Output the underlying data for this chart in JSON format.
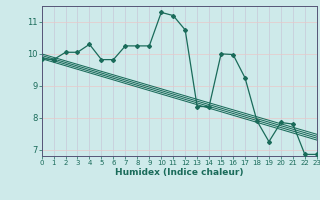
{
  "xlabel": "Humidex (Indice chaleur)",
  "xlim": [
    0,
    23
  ],
  "ylim": [
    6.8,
    11.5
  ],
  "xtick_values": [
    0,
    1,
    2,
    3,
    4,
    5,
    6,
    7,
    8,
    9,
    10,
    11,
    12,
    13,
    14,
    15,
    16,
    17,
    18,
    19,
    20,
    21,
    22,
    23
  ],
  "xtick_labels": [
    "0",
    "1",
    "2",
    "3",
    "4",
    "5",
    "6",
    "7",
    "8",
    "9",
    "10",
    "11",
    "12",
    "13",
    "14",
    "15",
    "16",
    "17",
    "18",
    "19",
    "20",
    "21",
    "22",
    "23"
  ],
  "ytick_values": [
    7,
    8,
    9,
    10,
    11
  ],
  "ytick_labels": [
    "7",
    "8",
    "9",
    "10",
    "11"
  ],
  "background_color": "#ceeaea",
  "grid_color_v": "#c8c8d8",
  "grid_color_h": "#e8c8c8",
  "line_color": "#1a6b5a",
  "data_x": [
    0,
    1,
    2,
    3,
    4,
    5,
    6,
    7,
    8,
    9,
    10,
    11,
    12,
    13,
    14,
    15,
    16,
    17,
    18,
    19,
    20,
    21,
    22,
    23
  ],
  "data_y": [
    9.85,
    9.82,
    10.05,
    10.05,
    10.3,
    9.82,
    9.82,
    10.25,
    10.25,
    10.25,
    11.3,
    11.2,
    10.75,
    8.35,
    8.35,
    10.0,
    9.98,
    9.25,
    7.9,
    7.25,
    7.85,
    7.8,
    6.85,
    6.85
  ],
  "reg_lines": [
    [
      9.85,
      7.3
    ],
    [
      9.9,
      7.36
    ],
    [
      9.95,
      7.42
    ],
    [
      10.0,
      7.48
    ]
  ]
}
